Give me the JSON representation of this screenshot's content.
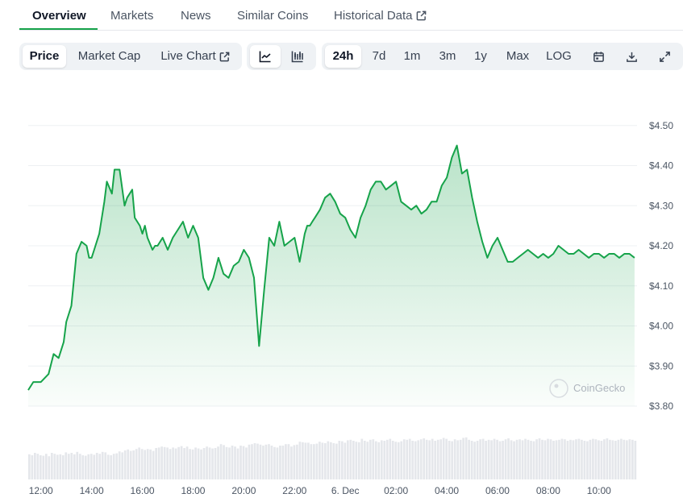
{
  "tabs": [
    {
      "label": "Overview",
      "active": true
    },
    {
      "label": "Markets"
    },
    {
      "label": "News"
    },
    {
      "label": "Similar Coins"
    },
    {
      "label": "Historical Data",
      "icon": "external-link-icon"
    }
  ],
  "toolbar": {
    "metric": [
      {
        "label": "Price",
        "active": true
      },
      {
        "label": "Market Cap"
      },
      {
        "label": "Live Chart",
        "icon": "external-link-icon"
      }
    ],
    "chart_style": [
      {
        "icon": "line-chart-icon",
        "active": true
      },
      {
        "icon": "candlestick-chart-icon"
      }
    ],
    "ranges": [
      {
        "label": "24h",
        "active": true
      },
      {
        "label": "7d"
      },
      {
        "label": "1m"
      },
      {
        "label": "3m"
      },
      {
        "label": "1y"
      },
      {
        "label": "Max"
      },
      {
        "label": "LOG"
      }
    ],
    "actions": [
      "calendar-icon",
      "download-icon",
      "fullscreen-icon"
    ]
  },
  "watermark": "CoinGecko",
  "colors": {
    "line": "#16a34a",
    "accent": "#16a34a",
    "volume": "#e5e7eb"
  },
  "chart_data": {
    "type": "area",
    "y_tick_labels": [
      "$4.50",
      "$4.40",
      "$4.30",
      "$4.20",
      "$4.10",
      "$4.00",
      "$3.90",
      "$3.80"
    ],
    "y_ticks": [
      4.5,
      4.4,
      4.3,
      4.2,
      4.1,
      4.0,
      3.9,
      3.8
    ],
    "ylim": [
      3.8,
      4.6
    ],
    "x_tick_labels": [
      "12:00",
      "14:00",
      "16:00",
      "18:00",
      "20:00",
      "22:00",
      "6. Dec",
      "02:00",
      "04:00",
      "06:00",
      "08:00",
      "10:00"
    ],
    "x_ticks": [
      12,
      14,
      16,
      18,
      20,
      22,
      24,
      26,
      28,
      30,
      32,
      34
    ],
    "xlim": [
      11.5,
      35.5
    ],
    "grid": true,
    "series": [
      {
        "x": [
          11.5,
          11.7,
          12.0,
          12.3,
          12.5,
          12.7,
          12.9,
          13.0,
          13.2,
          13.4,
          13.6,
          13.8,
          13.9,
          14.0,
          14.1,
          14.3,
          14.5,
          14.6,
          14.8,
          14.9,
          15.1,
          15.3,
          15.4,
          15.6,
          15.7,
          15.9,
          16.0,
          16.1,
          16.2,
          16.4,
          16.5,
          16.6,
          16.8,
          17.0,
          17.2,
          17.4,
          17.6,
          17.8,
          18.0,
          18.2,
          18.4,
          18.6,
          18.8,
          19.0,
          19.2,
          19.4,
          19.6,
          19.8,
          20.0,
          20.2,
          20.4,
          20.6,
          20.8,
          21.0,
          21.2,
          21.4,
          21.6,
          21.8,
          22.0,
          22.2,
          22.4,
          22.5,
          22.6,
          22.7,
          22.8,
          23.0,
          23.2,
          23.4,
          23.6,
          23.8,
          24.0,
          24.2,
          24.4,
          24.6,
          24.8,
          25.0,
          25.2,
          25.4,
          25.6,
          25.8,
          26.0,
          26.2,
          26.4,
          26.6,
          26.8,
          27.0,
          27.2,
          27.4,
          27.6,
          27.8,
          28.0,
          28.2,
          28.4,
          28.6,
          28.8,
          29.0,
          29.2,
          29.4,
          29.6,
          29.8,
          30.0,
          30.2,
          30.4,
          30.6,
          30.8,
          31.0,
          31.2,
          31.4,
          31.6,
          31.8,
          32.0,
          32.2,
          32.4,
          32.6,
          32.8,
          33.0,
          33.2,
          33.4,
          33.6,
          33.8,
          34.0,
          34.2,
          34.4,
          34.6,
          34.8,
          35.0,
          35.2,
          35.4
        ],
        "y": [
          3.84,
          3.86,
          3.86,
          3.88,
          3.93,
          3.92,
          3.96,
          4.01,
          4.05,
          4.18,
          4.21,
          4.2,
          4.17,
          4.17,
          4.19,
          4.23,
          4.31,
          4.36,
          4.33,
          4.39,
          4.39,
          4.3,
          4.32,
          4.34,
          4.27,
          4.25,
          4.23,
          4.25,
          4.22,
          4.19,
          4.2,
          4.2,
          4.22,
          4.19,
          4.22,
          4.24,
          4.26,
          4.22,
          4.25,
          4.22,
          4.12,
          4.09,
          4.12,
          4.17,
          4.13,
          4.12,
          4.15,
          4.16,
          4.19,
          4.17,
          4.12,
          3.95,
          4.09,
          4.22,
          4.2,
          4.26,
          4.2,
          4.21,
          4.22,
          4.16,
          4.23,
          4.25,
          4.25,
          4.26,
          4.27,
          4.29,
          4.32,
          4.33,
          4.31,
          4.28,
          4.27,
          4.24,
          4.22,
          4.27,
          4.3,
          4.34,
          4.36,
          4.36,
          4.34,
          4.35,
          4.36,
          4.31,
          4.3,
          4.29,
          4.3,
          4.28,
          4.29,
          4.31,
          4.31,
          4.35,
          4.37,
          4.42,
          4.45,
          4.38,
          4.39,
          4.32,
          4.26,
          4.21,
          4.17,
          4.2,
          4.22,
          4.19,
          4.16,
          4.16,
          4.17,
          4.18,
          4.19,
          4.18,
          4.17,
          4.18,
          4.17,
          4.18,
          4.2,
          4.19,
          4.18,
          4.18,
          4.19,
          4.18,
          4.17,
          4.18,
          4.18,
          4.17,
          4.18,
          4.18,
          4.17,
          4.18,
          4.18,
          4.17
        ]
      }
    ],
    "volume": [
      0.52,
      0.5,
      0.55,
      0.53,
      0.5,
      0.49,
      0.53,
      0.48,
      0.55,
      0.53,
      0.51,
      0.52,
      0.5,
      0.56,
      0.53,
      0.55,
      0.52,
      0.57,
      0.53,
      0.5,
      0.49,
      0.52,
      0.53,
      0.51,
      0.55,
      0.53,
      0.57,
      0.56,
      0.51,
      0.5,
      0.53,
      0.54,
      0.58,
      0.56,
      0.6,
      0.62,
      0.59,
      0.6,
      0.63,
      0.66,
      0.63,
      0.61,
      0.63,
      0.62,
      0.59,
      0.65,
      0.66,
      0.68,
      0.67,
      0.66,
      0.63,
      0.66,
      0.64,
      0.67,
      0.69,
      0.65,
      0.68,
      0.63,
      0.62,
      0.66,
      0.64,
      0.62,
      0.65,
      0.68,
      0.66,
      0.64,
      0.65,
      0.68,
      0.73,
      0.71,
      0.67,
      0.66,
      0.7,
      0.68,
      0.64,
      0.7,
      0.69,
      0.66,
      0.72,
      0.73,
      0.75,
      0.74,
      0.72,
      0.7,
      0.72,
      0.73,
      0.7,
      0.67,
      0.66,
      0.7,
      0.7,
      0.73,
      0.73,
      0.68,
      0.71,
      0.72,
      0.78,
      0.77,
      0.76,
      0.76,
      0.73,
      0.73,
      0.74,
      0.78,
      0.76,
      0.75,
      0.79,
      0.77,
      0.75,
      0.74,
      0.8,
      0.79,
      0.76,
      0.81,
      0.82,
      0.8,
      0.78,
      0.77,
      0.84,
      0.8,
      0.78,
      0.82,
      0.83,
      0.79,
      0.77,
      0.81,
      0.8,
      0.82,
      0.84,
      0.8,
      0.78,
      0.77,
      0.79,
      0.83,
      0.82,
      0.84,
      0.8,
      0.79,
      0.81,
      0.83,
      0.85,
      0.82,
      0.81,
      0.84,
      0.8,
      0.82,
      0.83,
      0.86,
      0.84,
      0.8,
      0.79,
      0.83,
      0.81,
      0.82,
      0.86,
      0.87,
      0.82,
      0.8,
      0.78,
      0.8,
      0.83,
      0.84,
      0.8,
      0.82,
      0.81,
      0.84,
      0.82,
      0.79,
      0.8,
      0.83,
      0.85,
      0.81,
      0.79,
      0.82,
      0.83,
      0.81,
      0.84,
      0.82,
      0.8,
      0.79,
      0.83,
      0.85,
      0.82,
      0.81,
      0.84,
      0.83,
      0.8,
      0.81,
      0.82,
      0.84,
      0.83,
      0.8,
      0.82,
      0.81,
      0.83,
      0.84,
      0.82,
      0.8,
      0.79,
      0.82,
      0.84,
      0.83,
      0.81,
      0.8,
      0.83,
      0.85,
      0.82,
      0.81,
      0.8,
      0.82,
      0.84,
      0.82,
      0.81,
      0.83,
      0.82,
      0.8
    ]
  }
}
